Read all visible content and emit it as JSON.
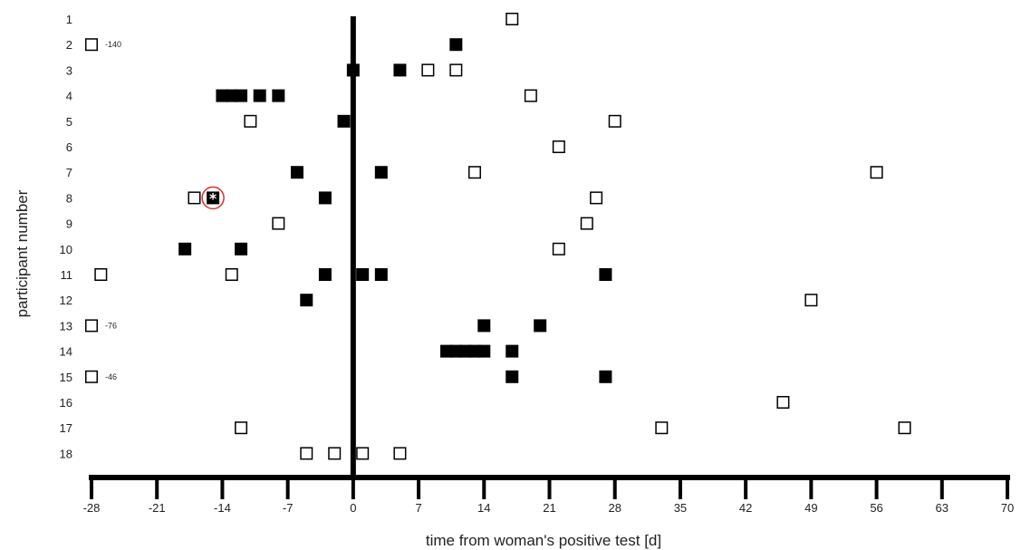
{
  "chart_data": {
    "type": "scatter",
    "xlabel": "time from woman's positive test [d]",
    "ylabel": "participant number",
    "xlim": [
      -28,
      70
    ],
    "x_ticks": [
      -28,
      -21,
      -14,
      -7,
      0,
      7,
      14,
      21,
      28,
      35,
      42,
      49,
      56,
      63,
      70
    ],
    "x_tick_labels": [
      "-28",
      "-21",
      "-14",
      "-7",
      "0",
      "7",
      "14",
      "21",
      "28",
      "35",
      "42",
      "49",
      "56",
      "63",
      "70"
    ],
    "y_categories": [
      "1",
      "2",
      "3",
      "4",
      "5",
      "6",
      "7",
      "8",
      "9",
      "10",
      "11",
      "12",
      "13",
      "14",
      "15",
      "16",
      "17",
      "18"
    ],
    "reference_line_x": 0,
    "grid": false,
    "series": [
      {
        "marker": "filled-square",
        "color": "#000000",
        "points": [
          {
            "participant": 2,
            "x": 11
          },
          {
            "participant": 3,
            "x": 0
          },
          {
            "participant": 3,
            "x": 5
          },
          {
            "participant": 4,
            "x": -14
          },
          {
            "participant": 4,
            "x": -13
          },
          {
            "participant": 4,
            "x": -12
          },
          {
            "participant": 4,
            "x": -10
          },
          {
            "participant": 4,
            "x": -8
          },
          {
            "participant": 5,
            "x": -1
          },
          {
            "participant": 7,
            "x": -6
          },
          {
            "participant": 7,
            "x": 3
          },
          {
            "participant": 8,
            "x": -15
          },
          {
            "participant": 8,
            "x": -3
          },
          {
            "participant": 10,
            "x": -18
          },
          {
            "participant": 10,
            "x": -12
          },
          {
            "participant": 11,
            "x": -3
          },
          {
            "participant": 11,
            "x": 1
          },
          {
            "participant": 11,
            "x": 3
          },
          {
            "participant": 11,
            "x": 27
          },
          {
            "participant": 12,
            "x": -5
          },
          {
            "participant": 13,
            "x": 14
          },
          {
            "participant": 13,
            "x": 20
          },
          {
            "participant": 14,
            "x": 10
          },
          {
            "participant": 14,
            "x": 11
          },
          {
            "participant": 14,
            "x": 12
          },
          {
            "participant": 14,
            "x": 13
          },
          {
            "participant": 14,
            "x": 14
          },
          {
            "participant": 14,
            "x": 17
          },
          {
            "participant": 15,
            "x": 17
          },
          {
            "participant": 15,
            "x": 27
          }
        ]
      },
      {
        "marker": "open-square",
        "color": "#000000",
        "points": [
          {
            "participant": 1,
            "x": 17
          },
          {
            "participant": 2,
            "x": -28
          },
          {
            "participant": 3,
            "x": 8
          },
          {
            "participant": 3,
            "x": 11
          },
          {
            "participant": 4,
            "x": 19
          },
          {
            "participant": 5,
            "x": -11
          },
          {
            "participant": 5,
            "x": 28
          },
          {
            "participant": 6,
            "x": 22
          },
          {
            "participant": 7,
            "x": 13
          },
          {
            "participant": 7,
            "x": 56
          },
          {
            "participant": 8,
            "x": -17
          },
          {
            "participant": 8,
            "x": 26
          },
          {
            "participant": 9,
            "x": -8
          },
          {
            "participant": 9,
            "x": 25
          },
          {
            "participant": 10,
            "x": 22
          },
          {
            "participant": 11,
            "x": -27
          },
          {
            "participant": 11,
            "x": -13
          },
          {
            "participant": 12,
            "x": 49
          },
          {
            "participant": 13,
            "x": -28
          },
          {
            "participant": 15,
            "x": -28
          },
          {
            "participant": 16,
            "x": 46
          },
          {
            "participant": 17,
            "x": -12
          },
          {
            "participant": 17,
            "x": 33
          },
          {
            "participant": 17,
            "x": 59
          },
          {
            "participant": 18,
            "x": -5
          },
          {
            "participant": 18,
            "x": -2
          },
          {
            "participant": 18,
            "x": 1
          },
          {
            "participant": 18,
            "x": 5
          }
        ]
      }
    ],
    "annotations": [
      {
        "participant": 2,
        "x": -28,
        "text": "-140"
      },
      {
        "participant": 13,
        "x": -28,
        "text": "-76"
      },
      {
        "participant": 15,
        "x": -28,
        "text": "-46"
      }
    ],
    "highlight": {
      "participant": 8,
      "x": -15,
      "marker": "red-circle-with-asterisk",
      "color": "#e03030"
    }
  }
}
